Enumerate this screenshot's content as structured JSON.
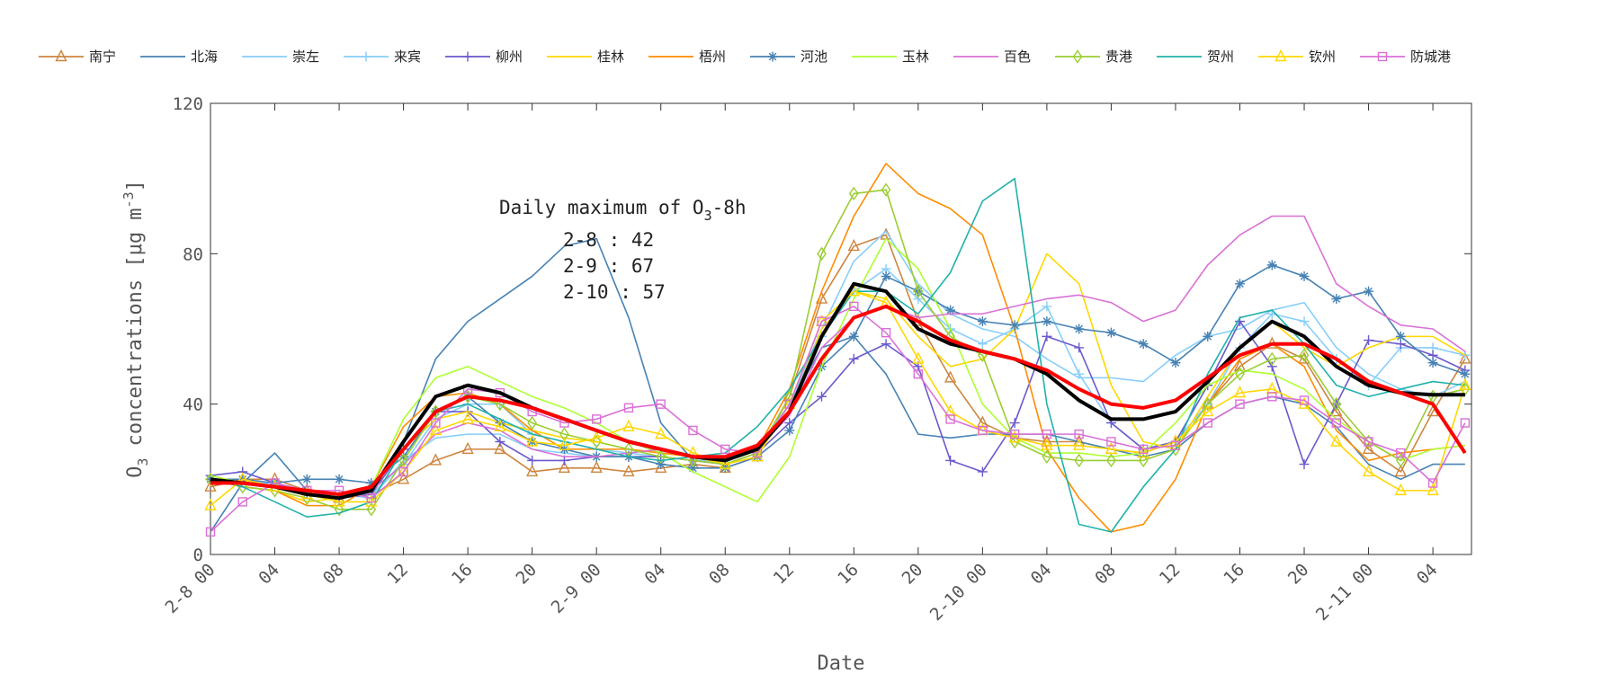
{
  "chart_data": {
    "type": "line",
    "xlabel": "Date",
    "ylabel": "O3 concentrations [μg m-3]",
    "ylabel_parts": {
      "pre": "O",
      "sub": "3",
      "mid": " concentrations [μg m",
      "sup": "-3",
      "post": "]"
    },
    "ylim": [
      0,
      120
    ],
    "yticks": [
      "0",
      "40",
      "80",
      "120"
    ],
    "xticks": [
      "2-8 00",
      "04",
      "08",
      "12",
      "16",
      "20",
      "2-9 00",
      "04",
      "08",
      "12",
      "16",
      "20",
      "2-10 00",
      "04",
      "08",
      "12",
      "16",
      "20",
      "2-11 00",
      "04"
    ],
    "x": [
      "2-8 00",
      "2-8 02",
      "2-8 04",
      "2-8 06",
      "2-8 08",
      "2-8 10",
      "2-8 12",
      "2-8 14",
      "2-8 16",
      "2-8 18",
      "2-8 20",
      "2-8 22",
      "2-9 00",
      "2-9 02",
      "2-9 04",
      "2-9 06",
      "2-9 08",
      "2-9 10",
      "2-9 12",
      "2-9 14",
      "2-9 16",
      "2-9 18",
      "2-9 20",
      "2-9 22",
      "2-10 00",
      "2-10 02",
      "2-10 04",
      "2-10 06",
      "2-10 08",
      "2-10 10",
      "2-10 12",
      "2-10 14",
      "2-10 16",
      "2-10 18",
      "2-10 20",
      "2-10 22",
      "2-11 00",
      "2-11 02",
      "2-11 04",
      "2-11 06"
    ],
    "grid": false,
    "legend_position": "top",
    "annotation": {
      "title_pre": "Daily maximum of O",
      "title_sub": "3",
      "title_post": "-8h",
      "lines": [
        "2-8 : 42",
        "2-9 : 67",
        "2-10 : 57"
      ]
    },
    "series": [
      {
        "name": "南宁",
        "color": "#CD853F",
        "marker": "triangle",
        "values": [
          18,
          20,
          20,
          17,
          15,
          16,
          20,
          25,
          28,
          28,
          22,
          23,
          23,
          22,
          23,
          24,
          23,
          26,
          42,
          68,
          82,
          85,
          62,
          47,
          35,
          31,
          30,
          30,
          28,
          27,
          30,
          40,
          50,
          56,
          52,
          38,
          28,
          22,
          38,
          52
        ]
      },
      {
        "name": "北海",
        "color": "#4682B4",
        "marker": "none",
        "values": [
          6,
          19,
          27,
          17,
          15,
          17,
          30,
          52,
          62,
          68,
          74,
          82,
          84,
          63,
          35,
          25,
          24,
          27,
          40,
          55,
          58,
          48,
          32,
          31,
          32,
          32,
          32,
          30,
          28,
          26,
          28,
          35,
          40,
          42,
          40,
          34,
          24,
          20,
          24,
          24
        ]
      },
      {
        "name": "崇左",
        "color": "#87CEFA",
        "marker": "none",
        "values": [
          20,
          19,
          18,
          17,
          16,
          15,
          25,
          31,
          32,
          32,
          28,
          27,
          26,
          26,
          26,
          25,
          25,
          28,
          40,
          60,
          78,
          86,
          72,
          64,
          60,
          58,
          52,
          47,
          47,
          46,
          53,
          58,
          60,
          65,
          67,
          55,
          48,
          44,
          42,
          46
        ]
      },
      {
        "name": "来宾",
        "color": "#87CEFA",
        "marker": "plus",
        "values": [
          20,
          19,
          19,
          17,
          16,
          16,
          24,
          36,
          40,
          40,
          32,
          30,
          28,
          27,
          26,
          25,
          25,
          28,
          40,
          58,
          70,
          76,
          68,
          60,
          56,
          60,
          66,
          48,
          35,
          28,
          30,
          40,
          55,
          64,
          62,
          52,
          45,
          55,
          55,
          53
        ]
      },
      {
        "name": "柳州",
        "color": "#6A5ACD",
        "marker": "plus",
        "values": [
          21,
          22,
          19,
          16,
          15,
          16,
          28,
          38,
          38,
          30,
          25,
          25,
          26,
          26,
          26,
          25,
          24,
          27,
          35,
          42,
          52,
          56,
          50,
          25,
          22,
          35,
          58,
          55,
          35,
          28,
          30,
          45,
          62,
          50,
          24,
          40,
          57,
          56,
          53,
          49
        ]
      },
      {
        "name": "桂林",
        "color": "#FFD700",
        "marker": "none",
        "values": [
          20,
          18,
          17,
          14,
          15,
          18,
          28,
          36,
          38,
          35,
          33,
          31,
          30,
          28,
          27,
          26,
          24,
          27,
          38,
          60,
          70,
          68,
          58,
          50,
          52,
          60,
          80,
          72,
          45,
          30,
          28,
          42,
          55,
          62,
          55,
          50,
          55,
          58,
          58,
          53
        ]
      },
      {
        "name": "梧州",
        "color": "#FF8C00",
        "marker": "none",
        "values": [
          20,
          18,
          17,
          13,
          13,
          18,
          34,
          42,
          43,
          40,
          33,
          28,
          28,
          28,
          27,
          26,
          25,
          28,
          44,
          70,
          90,
          104,
          96,
          92,
          85,
          60,
          28,
          15,
          6,
          8,
          20,
          40,
          52,
          56,
          50,
          33,
          25,
          27,
          28,
          29
        ]
      },
      {
        "name": "河池",
        "color": "#4682B4",
        "marker": "asterisk",
        "values": [
          20,
          20,
          19,
          20,
          20,
          19,
          26,
          38,
          42,
          35,
          30,
          28,
          26,
          26,
          24,
          23,
          23,
          26,
          33,
          50,
          58,
          74,
          70,
          65,
          62,
          61,
          62,
          60,
          59,
          56,
          51,
          58,
          72,
          77,
          74,
          68,
          70,
          58,
          51,
          48
        ]
      },
      {
        "name": "玉林",
        "color": "#ADFF2F",
        "marker": "none",
        "values": [
          21,
          19,
          18,
          16,
          15,
          18,
          36,
          47,
          50,
          46,
          42,
          39,
          35,
          30,
          27,
          22,
          18,
          14,
          26,
          50,
          68,
          84,
          76,
          60,
          40,
          31,
          27,
          27,
          26,
          27,
          35,
          45,
          49,
          48,
          44,
          36,
          30,
          25,
          28,
          29
        ]
      },
      {
        "name": "百色",
        "color": "#DA70D6",
        "marker": "none",
        "values": [
          20,
          19,
          18,
          16,
          16,
          17,
          24,
          32,
          35,
          33,
          28,
          26,
          26,
          27,
          28,
          26,
          25,
          28,
          37,
          55,
          63,
          66,
          63,
          64,
          64,
          66,
          68,
          69,
          67,
          62,
          65,
          77,
          85,
          90,
          90,
          72,
          66,
          61,
          60,
          54
        ]
      },
      {
        "name": "贵港",
        "color": "#9ACD32",
        "marker": "diamond",
        "values": [
          20,
          18,
          17,
          15,
          12,
          12,
          25,
          38,
          42,
          40,
          35,
          32,
          30,
          28,
          26,
          25,
          24,
          27,
          42,
          80,
          96,
          97,
          70,
          58,
          53,
          30,
          26,
          25,
          25,
          25,
          28,
          40,
          48,
          52,
          53,
          40,
          30,
          25,
          42,
          44
        ]
      },
      {
        "name": "贺州",
        "color": "#20B2AA",
        "marker": "none",
        "values": [
          20,
          18,
          14,
          10,
          11,
          14,
          28,
          38,
          40,
          36,
          32,
          30,
          28,
          26,
          25,
          26,
          27,
          34,
          44,
          58,
          70,
          70,
          64,
          75,
          94,
          100,
          40,
          8,
          6,
          18,
          28,
          48,
          63,
          65,
          56,
          45,
          42,
          44,
          46,
          45
        ]
      },
      {
        "name": "钦州",
        "color": "#FFD700",
        "marker": "triangle",
        "values": [
          13,
          20,
          18,
          16,
          14,
          14,
          22,
          33,
          36,
          34,
          30,
          29,
          31,
          34,
          32,
          27,
          24,
          26,
          40,
          62,
          70,
          67,
          52,
          38,
          33,
          31,
          29,
          29,
          28,
          27,
          30,
          38,
          43,
          44,
          40,
          30,
          22,
          17,
          17,
          45
        ]
      },
      {
        "name": "防城港",
        "color": "#DA70D6",
        "marker": "square",
        "values": [
          6,
          14,
          19,
          17,
          17,
          15,
          22,
          35,
          44,
          43,
          38,
          35,
          36,
          39,
          40,
          33,
          28,
          27,
          40,
          62,
          66,
          59,
          48,
          36,
          33,
          32,
          32,
          32,
          30,
          28,
          29,
          35,
          40,
          42,
          41,
          35,
          30,
          27,
          19,
          35
        ]
      },
      {
        "color": "#000000",
        "marker": "none",
        "bold": true,
        "values": [
          20,
          19,
          18,
          16,
          15,
          17,
          30,
          42,
          45,
          43,
          39,
          36,
          33,
          30,
          28,
          26,
          25,
          28,
          38,
          58,
          72,
          70,
          60,
          56,
          54,
          52,
          48,
          41,
          36,
          36,
          38,
          46,
          55,
          62,
          58,
          50,
          45,
          43,
          42.5,
          42.5
        ]
      },
      {
        "color": "#FF0000",
        "marker": "none",
        "bold": true,
        "values": [
          19,
          19,
          18,
          17,
          16,
          18,
          28,
          38,
          42,
          41,
          39,
          36,
          33,
          30,
          28,
          26,
          26,
          29,
          38,
          52,
          63,
          66,
          62,
          57,
          54,
          52,
          49,
          44,
          40,
          39,
          41,
          47,
          53,
          56,
          56,
          52,
          46,
          43,
          40,
          27
        ]
      }
    ]
  }
}
